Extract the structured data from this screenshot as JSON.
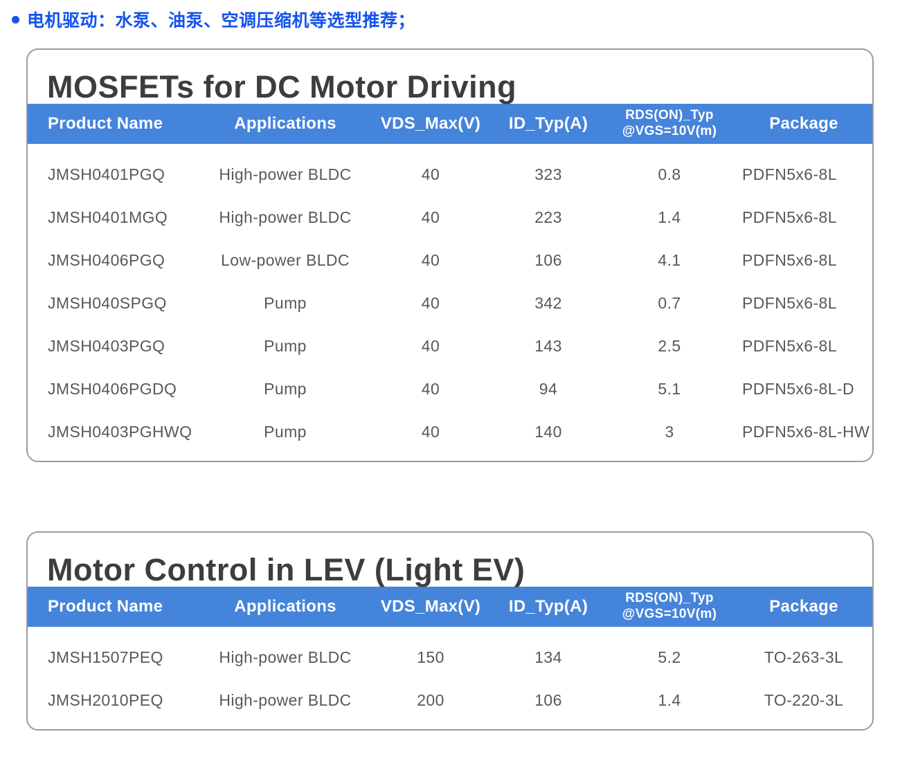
{
  "bullet_note": {
    "text": "电机驱动：水泵、油泵、空调压缩机等选型推荐；",
    "color": "#1353ee"
  },
  "colors": {
    "header_bg": "#4584db",
    "header_text": "#ffffff",
    "title_text": "#3d3d3d",
    "cell_text": "#585858",
    "card_border": "#989c9f"
  },
  "table1": {
    "title": "MOSFETs for DC Motor Driving",
    "headers": {
      "product": "Product Name",
      "applications": "Applications",
      "vds": "VDS_Max(V)",
      "id": "ID_Typ(A)",
      "rds_line1": "RDS(ON)_Typ",
      "rds_line2": "@VGS=10V(m)",
      "package": "Package"
    },
    "rows": [
      {
        "product": "JMSH0401PGQ",
        "applications": "High-power BLDC",
        "vds": "40",
        "id": "323",
        "rds": "0.8",
        "package": "PDFN5x6-8L"
      },
      {
        "product": "JMSH0401MGQ",
        "applications": "High-power BLDC",
        "vds": "40",
        "id": "223",
        "rds": "1.4",
        "package": "PDFN5x6-8L"
      },
      {
        "product": "JMSH0406PGQ",
        "applications": "Low-power BLDC",
        "vds": "40",
        "id": "106",
        "rds": "4.1",
        "package": "PDFN5x6-8L"
      },
      {
        "product": "JMSH040SPGQ",
        "applications": "Pump",
        "vds": "40",
        "id": "342",
        "rds": "0.7",
        "package": "PDFN5x6-8L"
      },
      {
        "product": "JMSH0403PGQ",
        "applications": "Pump",
        "vds": "40",
        "id": "143",
        "rds": "2.5",
        "package": "PDFN5x6-8L"
      },
      {
        "product": "JMSH0406PGDQ",
        "applications": "Pump",
        "vds": "40",
        "id": "94",
        "rds": "5.1",
        "package": "PDFN5x6-8L-D"
      },
      {
        "product": "JMSH0403PGHWQ",
        "applications": "Pump",
        "vds": "40",
        "id": "140",
        "rds": "3",
        "package": "PDFN5x6-8L-HW"
      }
    ]
  },
  "table2": {
    "title": "Motor Control in LEV (Light EV)",
    "headers": {
      "product": "Product Name",
      "applications": "Applications",
      "vds": "VDS_Max(V)",
      "id": "ID_Typ(A)",
      "rds_line1": "RDS(ON)_Typ",
      "rds_line2": "@VGS=10V(m)",
      "package": "Package"
    },
    "rows": [
      {
        "product": "JMSH1507PEQ",
        "applications": "High-power BLDC",
        "vds": "150",
        "id": "134",
        "rds": "5.2",
        "package": "TO-263-3L"
      },
      {
        "product": "JMSH2010PEQ",
        "applications": "High-power BLDC",
        "vds": "200",
        "id": "106",
        "rds": "1.4",
        "package": "TO-220-3L"
      }
    ]
  }
}
